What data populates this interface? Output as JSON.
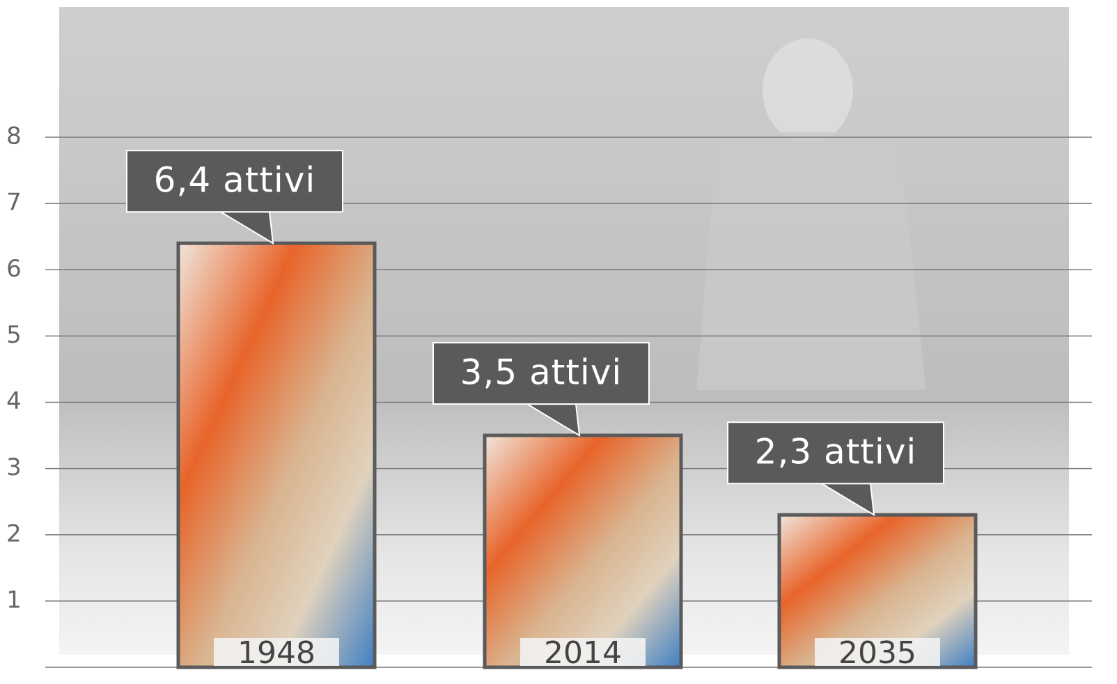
{
  "chart_data": {
    "type": "bar",
    "categories": [
      "1948",
      "2014",
      "2035"
    ],
    "values": [
      6.4,
      3.5,
      2.3
    ],
    "value_labels": [
      "6,4 attivi",
      "3,5 attivi",
      "2,3 attivi"
    ],
    "ylim": [
      0,
      8
    ],
    "yticks": [
      1,
      2,
      3,
      4,
      5,
      6,
      7,
      8
    ],
    "grid": true,
    "color": "#5a5a5a"
  }
}
